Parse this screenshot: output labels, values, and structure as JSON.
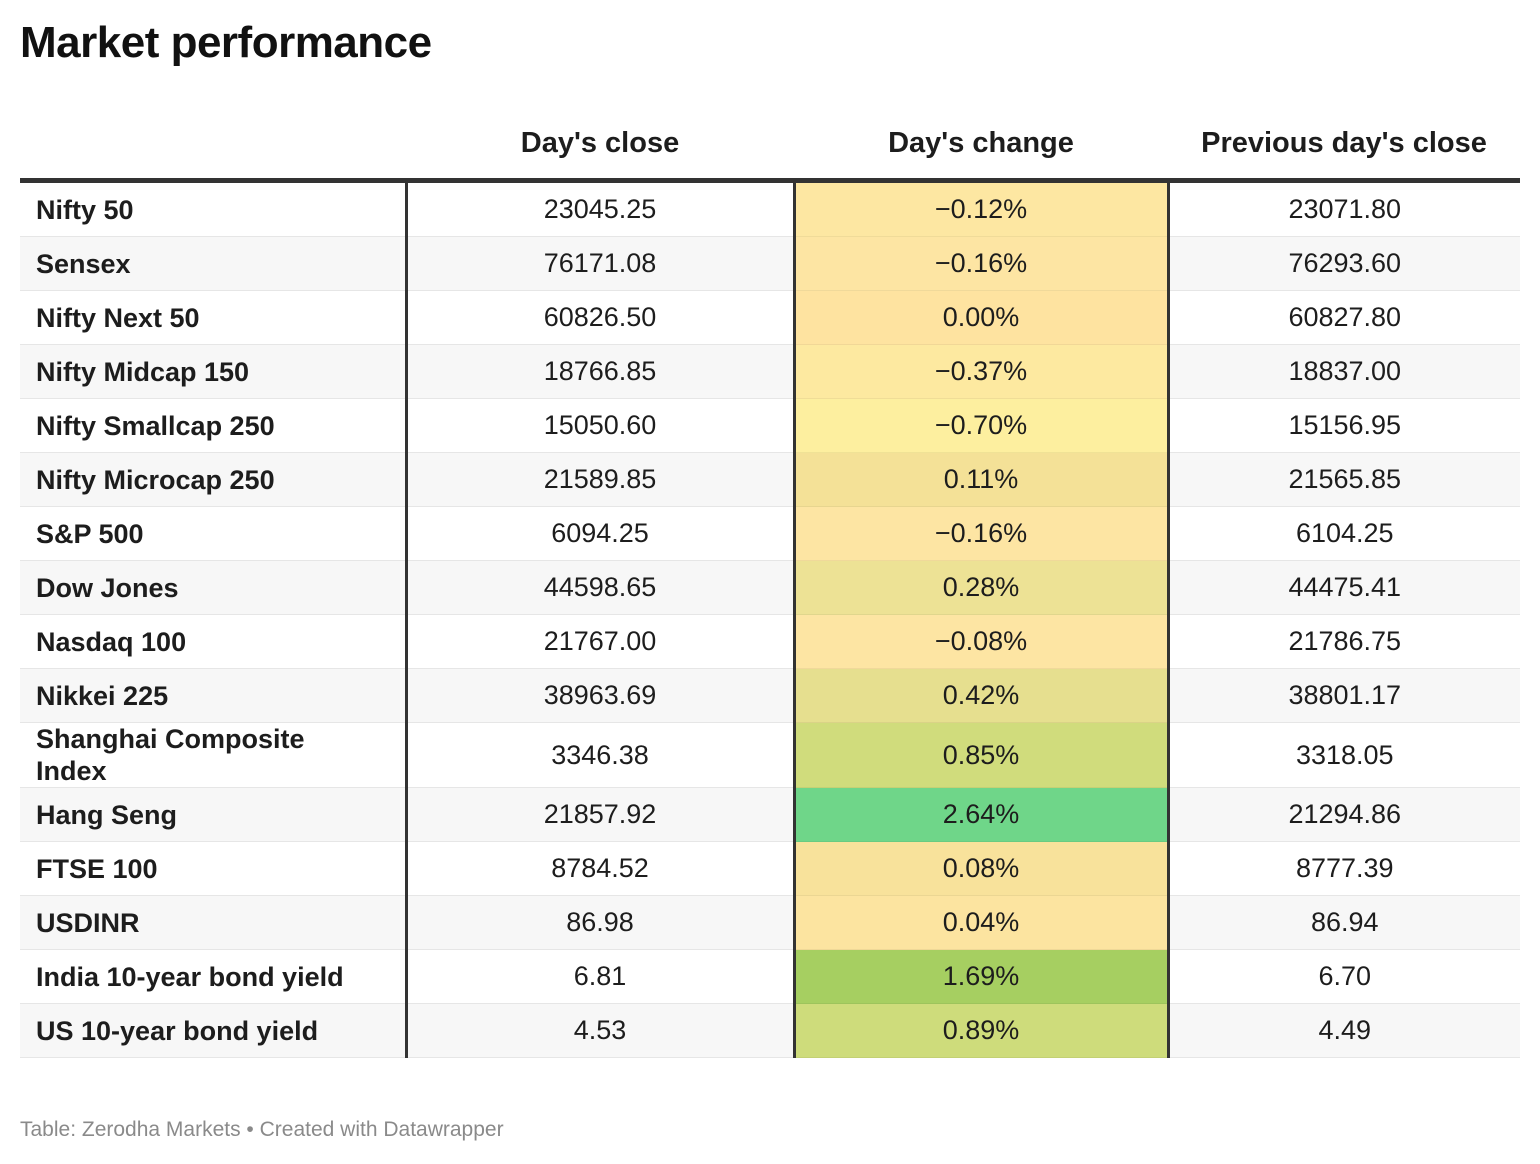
{
  "title": "Market performance",
  "footer": "Table: Zerodha Markets • Created with Datawrapper",
  "chart_data": {
    "type": "table",
    "title": "Market performance",
    "columns": [
      "",
      "Day's close",
      "Day's change",
      "Previous day's close"
    ],
    "rows": [
      {
        "name": "Nifty 50",
        "close": "23045.25",
        "change": "-0.12%",
        "change_value": -0.12,
        "prev": "23071.80"
      },
      {
        "name": "Sensex",
        "close": "76171.08",
        "change": "-0.16%",
        "change_value": -0.16,
        "prev": "76293.60"
      },
      {
        "name": "Nifty Next 50",
        "close": "60826.50",
        "change": "0.00%",
        "change_value": 0.0,
        "prev": "60827.80"
      },
      {
        "name": "Nifty Midcap 150",
        "close": "18766.85",
        "change": "-0.37%",
        "change_value": -0.37,
        "prev": "18837.00"
      },
      {
        "name": "Nifty Smallcap 250",
        "close": "15050.60",
        "change": "-0.70%",
        "change_value": -0.7,
        "prev": "15156.95"
      },
      {
        "name": "Nifty Microcap 250",
        "close": "21589.85",
        "change": "0.11%",
        "change_value": 0.11,
        "prev": "21565.85"
      },
      {
        "name": "S&P 500",
        "close": "6094.25",
        "change": "-0.16%",
        "change_value": -0.16,
        "prev": "6104.25"
      },
      {
        "name": "Dow Jones",
        "close": "44598.65",
        "change": "0.28%",
        "change_value": 0.28,
        "prev": "44475.41"
      },
      {
        "name": "Nasdaq 100",
        "close": "21767.00",
        "change": "-0.08%",
        "change_value": -0.08,
        "prev": "21786.75"
      },
      {
        "name": "Nikkei 225",
        "close": "38963.69",
        "change": "0.42%",
        "change_value": 0.42,
        "prev": "38801.17"
      },
      {
        "name": "Shanghai Composite Index",
        "close": "3346.38",
        "change": "0.85%",
        "change_value": 0.85,
        "prev": "3318.05"
      },
      {
        "name": "Hang Seng",
        "close": "21857.92",
        "change": "2.64%",
        "change_value": 2.64,
        "prev": "21294.86"
      },
      {
        "name": "FTSE 100",
        "close": "8784.52",
        "change": "0.08%",
        "change_value": 0.08,
        "prev": "8777.39"
      },
      {
        "name": "USDINR",
        "close": "86.98",
        "change": "0.04%",
        "change_value": 0.04,
        "prev": "86.94"
      },
      {
        "name": "India 10-year bond yield",
        "close": "6.81",
        "change": "1.69%",
        "change_value": 1.69,
        "prev": "6.70"
      },
      {
        "name": "US 10-year bond yield",
        "close": "4.53",
        "change": "0.89%",
        "change_value": 0.89,
        "prev": "4.49"
      }
    ],
    "change_colors": [
      "#fde7a2",
      "#fde5a3",
      "#fee3a0",
      "#fde9a0",
      "#fdef9f",
      "#f4e197",
      "#fde5a3",
      "#ede295",
      "#fde5a3",
      "#e6df8f",
      "#d0dc7c",
      "#6fd689",
      "#f8e29b",
      "#fce4a0",
      "#a6cf61",
      "#cedc7b"
    ]
  }
}
